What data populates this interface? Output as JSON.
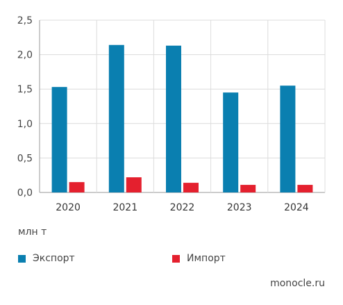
{
  "chart_data": {
    "type": "bar",
    "categories": [
      "2020",
      "2021",
      "2022",
      "2023",
      "2024"
    ],
    "series": [
      {
        "name": "Экспорт",
        "color": "#0a7fb0",
        "values": [
          1.53,
          2.14,
          2.13,
          1.45,
          1.55
        ]
      },
      {
        "name": "Импорт",
        "color": "#e4202e",
        "values": [
          0.15,
          0.22,
          0.14,
          0.11,
          0.11
        ]
      }
    ],
    "y_ticks": [
      "0,0",
      "0,5",
      "1,0",
      "1,5",
      "2,0",
      "2,5"
    ],
    "ylim": [
      0,
      2.5
    ],
    "grid": true,
    "legend_position": "bottom-left"
  },
  "unit_label": "млн т",
  "legend": {
    "export_label": "Экспорт",
    "import_label": "Импорт"
  },
  "source": "monocle.ru"
}
